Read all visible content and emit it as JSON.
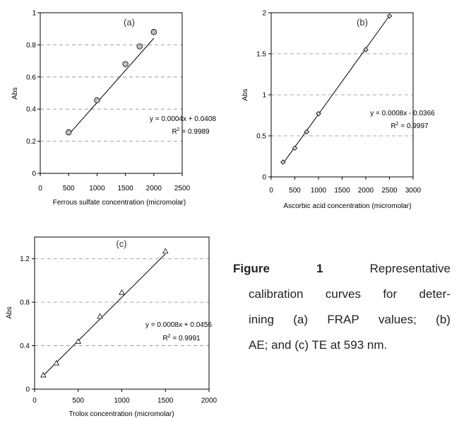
{
  "chart_data": [
    {
      "panel": "a",
      "type": "scatter",
      "title": "(a)",
      "xlabel": "Ferrous sulfate concentration (micromolar)",
      "ylabel": "Abs",
      "xlim": [
        0,
        2500
      ],
      "ylim": [
        0,
        1
      ],
      "xticks": [
        "0",
        "500",
        "1000",
        "1500",
        "2000",
        "2500"
      ],
      "yticks": [
        "0",
        "0.2",
        "0.4",
        "0.6",
        "0.8",
        "1"
      ],
      "grid": "horizontal-dashed",
      "marker": "circle",
      "marker_fill": "#bfbfbf",
      "x": [
        500,
        1000,
        1500,
        1750,
        2000
      ],
      "y": [
        0.255,
        0.455,
        0.68,
        0.79,
        0.88
      ],
      "trendline": {
        "slope": 0.0004,
        "intercept": 0.0408,
        "x_range": [
          500,
          2000
        ]
      },
      "equation": "y = 0.0004x + 0.0408",
      "r2_prefix": "R",
      "r2_exp": "2",
      "r2_value": " = 0.9989"
    },
    {
      "panel": "b",
      "type": "scatter",
      "title": "(b)",
      "xlabel": "Ascorbic acid concentration (micromolar)",
      "ylabel": "Abs",
      "xlim": [
        0,
        3000
      ],
      "ylim": [
        0,
        2
      ],
      "xticks": [
        "0",
        "500",
        "1000",
        "1500",
        "2000",
        "2500",
        "3000"
      ],
      "yticks": [
        "0",
        "0.5",
        "1",
        "1.5",
        "2"
      ],
      "grid": "horizontal-dashed",
      "marker": "diamond",
      "marker_fill": "#d0d0d0",
      "x": [
        250,
        500,
        750,
        1000,
        2000,
        2500
      ],
      "y": [
        0.18,
        0.35,
        0.55,
        0.77,
        1.55,
        1.96
      ],
      "trendline": {
        "slope": 0.0008,
        "intercept": -0.0366,
        "x_range": [
          250,
          2500
        ]
      },
      "equation": "y = 0.0008x - 0.0366",
      "r2_prefix": "R",
      "r2_exp": "2",
      "r2_value": " = 0.9997"
    },
    {
      "panel": "c",
      "type": "scatter",
      "title": "(c)",
      "xlabel": "Trolox concentration (micromolar)",
      "ylabel": "Abs",
      "xlim": [
        0,
        2000
      ],
      "ylim": [
        0,
        1.4
      ],
      "xticks": [
        "0",
        "500",
        "1000",
        "1500",
        "2000"
      ],
      "ytick_values": [
        0,
        0.4,
        0.8,
        1.2
      ],
      "yticks": [
        "0",
        "0.4",
        "0.8",
        "1.2"
      ],
      "grid": "horizontal-dashed",
      "marker": "triangle",
      "marker_fill": "#ffffff",
      "x": [
        100,
        250,
        500,
        750,
        1000,
        1500
      ],
      "y": [
        0.13,
        0.24,
        0.44,
        0.67,
        0.89,
        1.27
      ],
      "trendline": {
        "slope": 0.0008,
        "intercept": 0.0456,
        "x_range": [
          100,
          1500
        ]
      },
      "equation": "y = 0.0008x + 0.0456",
      "r2_prefix": "R",
      "r2_exp": "2",
      "r2_value": " = 0.9991"
    }
  ],
  "caption": {
    "label": "Figure",
    "number": "1",
    "line1_rest": "Representative",
    "line2": [
      "calibration",
      "curves",
      "for",
      "deter-"
    ],
    "line3": [
      "ining",
      "(a)",
      "FRAP",
      "values;",
      "(b)"
    ],
    "line4": "AE; and (c) TE at 593 nm."
  }
}
